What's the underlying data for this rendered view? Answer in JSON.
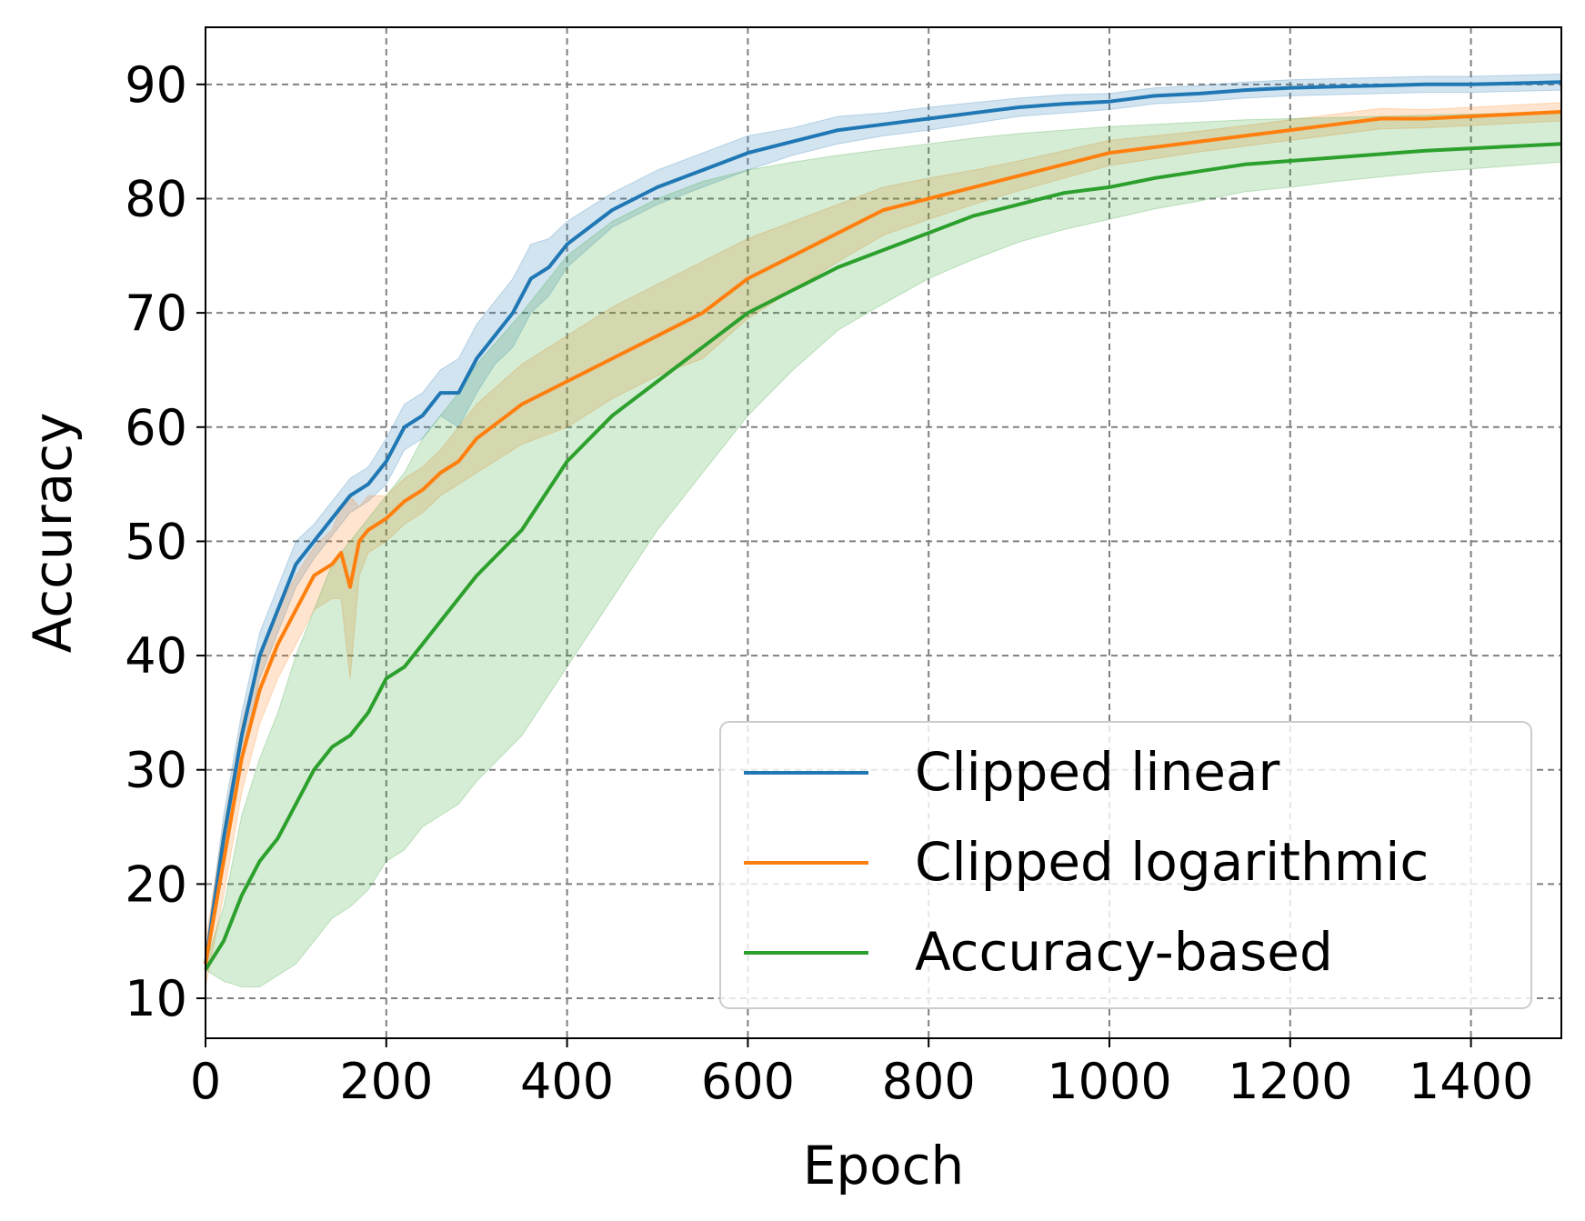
{
  "chart_data": {
    "type": "line",
    "title": "",
    "xlabel": "Epoch",
    "ylabel": "Accuracy",
    "xlim": [
      0,
      1500
    ],
    "ylim": [
      6.5,
      95
    ],
    "xticks": [
      0,
      200,
      400,
      600,
      800,
      1000,
      1200,
      1400
    ],
    "yticks": [
      10,
      20,
      30,
      40,
      50,
      60,
      70,
      80,
      90
    ],
    "grid": true,
    "legend_position": "lower-right",
    "series": [
      {
        "name": "Clipped linear",
        "color": "#1f77b4",
        "x": [
          0,
          20,
          40,
          60,
          80,
          100,
          120,
          140,
          160,
          180,
          200,
          220,
          240,
          260,
          280,
          300,
          320,
          340,
          360,
          380,
          400,
          450,
          500,
          550,
          600,
          650,
          700,
          750,
          800,
          850,
          900,
          950,
          1000,
          1050,
          1100,
          1150,
          1200,
          1250,
          1300,
          1350,
          1400,
          1450,
          1500
        ],
        "y": [
          13,
          24,
          33,
          40,
          44,
          48,
          50,
          52,
          54,
          55,
          57,
          60,
          61,
          63,
          63,
          66,
          68,
          70,
          73,
          74,
          76,
          79,
          81,
          82.5,
          84,
          85,
          86,
          86.5,
          87,
          87.5,
          88,
          88.3,
          88.5,
          89,
          89.2,
          89.5,
          89.7,
          89.8,
          89.9,
          90,
          90,
          90.1,
          90.2
        ],
        "lower": [
          12,
          22,
          31,
          38,
          42,
          46,
          48.5,
          50.5,
          52.5,
          53.5,
          55,
          58,
          59,
          61,
          60,
          63,
          65.5,
          67,
          70,
          71.5,
          74,
          77.5,
          79.5,
          81,
          82.5,
          83.8,
          84.8,
          85.5,
          86,
          86.6,
          87.2,
          87.5,
          87.8,
          88.3,
          88.5,
          88.8,
          89,
          89.1,
          89.2,
          89.3,
          89.3,
          89.4,
          89.5
        ],
        "upper": [
          14,
          26,
          35,
          42,
          46,
          50,
          51.5,
          53.5,
          55.5,
          56.5,
          59,
          62,
          63,
          65,
          66,
          69,
          71,
          73,
          76,
          76.5,
          78,
          80.5,
          82.5,
          84,
          85.5,
          86.2,
          87.2,
          87.5,
          88,
          88.4,
          88.8,
          89.1,
          89.2,
          89.7,
          89.9,
          90.2,
          90.4,
          90.5,
          90.6,
          90.7,
          90.7,
          90.8,
          90.9
        ]
      },
      {
        "name": "Clipped logarithmic",
        "color": "#ff7f0e",
        "x": [
          0,
          20,
          40,
          60,
          80,
          100,
          120,
          140,
          150,
          160,
          170,
          180,
          200,
          220,
          240,
          260,
          280,
          300,
          350,
          400,
          450,
          500,
          550,
          600,
          650,
          700,
          750,
          800,
          850,
          900,
          950,
          1000,
          1050,
          1100,
          1150,
          1200,
          1250,
          1300,
          1350,
          1400,
          1450,
          1500
        ],
        "y": [
          13,
          22,
          31,
          37,
          41,
          44,
          47,
          48,
          49,
          46,
          50,
          51,
          52,
          53.5,
          54.5,
          56,
          57,
          59,
          62,
          64,
          66,
          68,
          70,
          73,
          75,
          77,
          79,
          80,
          81,
          82,
          83,
          84,
          84.5,
          85,
          85.5,
          86,
          86.5,
          87,
          87,
          87.2,
          87.4,
          87.6
        ],
        "lower": [
          11,
          19,
          28,
          34,
          38,
          41,
          44,
          45,
          45,
          38,
          47,
          49,
          50,
          51.5,
          52.5,
          54,
          55,
          56,
          58.5,
          60,
          62.5,
          64.5,
          66,
          69.5,
          72,
          74.5,
          76.8,
          78.2,
          79.5,
          80.7,
          81.8,
          82.9,
          83.5,
          84.1,
          84.6,
          85.1,
          85.6,
          86.1,
          86.2,
          86.4,
          86.6,
          86.8
        ],
        "upper": [
          15,
          25,
          34,
          40,
          44,
          47,
          49.5,
          51,
          53,
          54,
          53,
          54,
          54,
          55.5,
          56.5,
          58,
          60,
          62,
          65.5,
          68,
          70.5,
          72.5,
          74.5,
          76.5,
          78,
          79.5,
          81,
          81.8,
          82.5,
          83.3,
          84.2,
          85.1,
          85.5,
          85.9,
          86.4,
          86.9,
          87.4,
          87.9,
          87.8,
          88,
          88.2,
          88.4
        ]
      },
      {
        "name": "Accuracy-based",
        "color": "#2ca02c",
        "x": [
          0,
          20,
          40,
          60,
          80,
          100,
          120,
          140,
          160,
          180,
          200,
          220,
          240,
          260,
          280,
          300,
          350,
          400,
          450,
          500,
          550,
          600,
          650,
          700,
          750,
          800,
          850,
          900,
          950,
          1000,
          1050,
          1100,
          1150,
          1200,
          1250,
          1300,
          1350,
          1400,
          1450,
          1500
        ],
        "y": [
          12.5,
          15,
          19,
          22,
          24,
          27,
          30,
          32,
          33,
          35,
          38,
          39,
          41,
          43,
          45,
          47,
          51,
          57,
          61,
          64,
          67,
          70,
          72,
          74,
          75.5,
          77,
          78.5,
          79.5,
          80.5,
          81,
          81.8,
          82.4,
          83,
          83.3,
          83.6,
          83.9,
          84.2,
          84.4,
          84.6,
          84.8
        ],
        "lower": [
          12.5,
          11.5,
          11,
          11,
          12,
          13,
          15,
          17,
          18,
          19.5,
          22,
          23,
          25,
          26,
          27,
          29,
          33,
          39,
          45,
          51,
          56,
          61,
          65,
          68.5,
          70.8,
          73,
          74.7,
          76.2,
          77.3,
          78.2,
          79.1,
          79.8,
          80.6,
          81,
          81.5,
          81.9,
          82.3,
          82.6,
          82.9,
          83.2
        ],
        "upper": [
          13,
          18,
          26,
          31,
          35,
          40,
          44,
          48,
          50,
          52,
          54,
          56,
          59,
          61,
          63,
          65.5,
          70,
          75,
          78,
          80,
          81.5,
          82.5,
          83.2,
          83.8,
          84.3,
          84.8,
          85.3,
          85.7,
          86,
          86.3,
          86.5,
          86.7,
          86.9,
          87,
          87.1,
          87.2,
          87.3,
          87.4,
          87.5,
          87.6
        ]
      }
    ]
  }
}
